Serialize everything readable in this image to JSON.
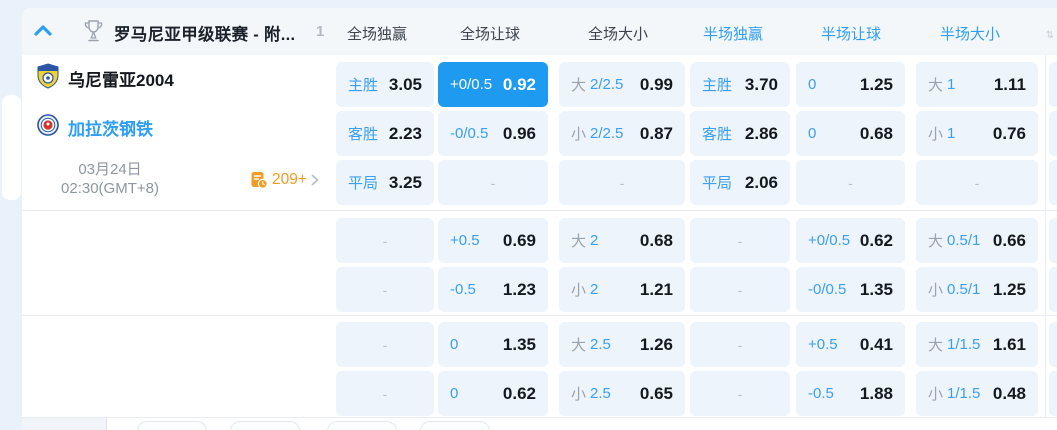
{
  "header": {
    "league": "罗马尼亚甲级联赛 - 附...",
    "match_count": "1",
    "columns": [
      "全场独赢",
      "全场让球",
      "全场大小",
      "半场独赢",
      "半场让球",
      "半场大小"
    ]
  },
  "match": {
    "home_team": "乌尼雷亚2004",
    "away_team": "加拉茨钢铁",
    "date": "03月24日",
    "time": "02:30(GMT+8)",
    "markets_count": "209+"
  },
  "odds": {
    "sections": [
      {
        "rows": [
          [
            {
              "label": "主胜",
              "value": "3.05"
            },
            {
              "label": "+0/0.5",
              "value": "0.92",
              "selected": true
            },
            {
              "prefix": "大",
              "label": "2/2.5",
              "value": "0.99"
            },
            {
              "label": "主胜",
              "value": "3.70"
            },
            {
              "label": "0",
              "value": "1.25"
            },
            {
              "prefix": "大",
              "label": "1",
              "value": "1.11"
            }
          ],
          [
            {
              "label": "客胜",
              "value": "2.23"
            },
            {
              "label": "-0/0.5",
              "value": "0.96"
            },
            {
              "prefix": "小",
              "label": "2/2.5",
              "value": "0.87"
            },
            {
              "label": "客胜",
              "value": "2.86"
            },
            {
              "label": "0",
              "value": "0.68"
            },
            {
              "prefix": "小",
              "label": "1",
              "value": "0.76"
            }
          ],
          [
            {
              "label": "平局",
              "value": "3.25"
            },
            {
              "dash": true
            },
            {
              "dash": true
            },
            {
              "label": "平局",
              "value": "2.06"
            },
            {
              "dash": true
            },
            {
              "dash": true
            }
          ]
        ]
      },
      {
        "rows": [
          [
            {
              "dash": true
            },
            {
              "label": "+0.5",
              "value": "0.69"
            },
            {
              "prefix": "大",
              "label": "2",
              "value": "0.68"
            },
            {
              "dash": true
            },
            {
              "label": "+0/0.5",
              "value": "0.62"
            },
            {
              "prefix": "大",
              "label": "0.5/1",
              "value": "0.66"
            }
          ],
          [
            {
              "dash": true
            },
            {
              "label": "-0.5",
              "value": "1.23"
            },
            {
              "prefix": "小",
              "label": "2",
              "value": "1.21"
            },
            {
              "dash": true
            },
            {
              "label": "-0/0.5",
              "value": "1.35"
            },
            {
              "prefix": "小",
              "label": "0.5/1",
              "value": "1.25"
            }
          ]
        ]
      },
      {
        "rows": [
          [
            {
              "dash": true
            },
            {
              "label": "0",
              "value": "1.35"
            },
            {
              "prefix": "大",
              "label": "2.5",
              "value": "1.26"
            },
            {
              "dash": true
            },
            {
              "label": "+0.5",
              "value": "0.41"
            },
            {
              "prefix": "大",
              "label": "1/1.5",
              "value": "1.61"
            }
          ],
          [
            {
              "dash": true
            },
            {
              "label": "0",
              "value": "0.62"
            },
            {
              "prefix": "小",
              "label": "2.5",
              "value": "0.65"
            },
            {
              "dash": true
            },
            {
              "label": "-0.5",
              "value": "1.88"
            },
            {
              "prefix": "小",
              "label": "1/1.5",
              "value": "0.48"
            }
          ]
        ]
      }
    ]
  },
  "colors": {
    "accent_blue": "#2b9ef5",
    "selected_cell_blue": "#1e9af0",
    "markets_orange": "#f59b25",
    "cell_background": "#edf4fb"
  }
}
